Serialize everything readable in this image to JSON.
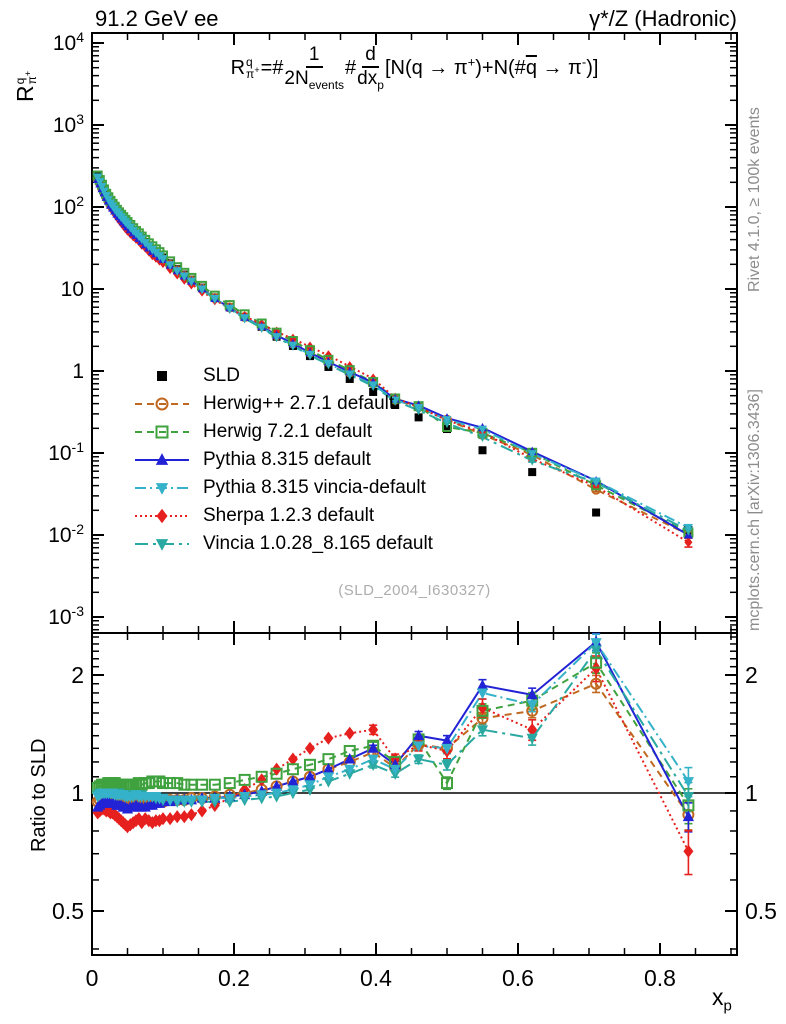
{
  "header": {
    "left": "91.2 GeV ee",
    "right": "γ*/Z (Hadronic)"
  },
  "formula": {
    "lhs_base": "R",
    "lhs_sup": "q",
    "lhs_sub_base": "π",
    "lhs_sub_sup": "+",
    "equals": "=#",
    "frac1_num": "1",
    "frac1_den": "2N",
    "frac1_den_sub": "events",
    "hash": "#",
    "frac2_num": "d",
    "frac2_den": "dx",
    "frac2_den_sub": "p",
    "rhs_1": "[N(q → π",
    "rhs_1_sup": "+",
    "rhs_2": ")+N(#",
    "rhs_qbar": "q",
    "rhs_3": " → π",
    "rhs_3_sup": "-",
    "rhs_4": ")]"
  },
  "watermark": "(SLD_2004_I630327)",
  "side_notes": {
    "right_top": "Rivet 4.1.0, ≥ 100k events",
    "right_bottom": "mcplots.cern.ch [arXiv:1306.3436]"
  },
  "axis_titles": {
    "main_base": "R",
    "main_sup": "q",
    "main_sub_base": "π",
    "main_sub_sup": "+",
    "ratio_label": "Ratio to SLD",
    "x_base": "x",
    "x_sub": "p"
  },
  "axes": {
    "x": {
      "majors": [
        {
          "v": 0,
          "t": "0"
        },
        {
          "v": 0.2,
          "t": "0.2"
        },
        {
          "v": 0.4,
          "t": "0.4"
        },
        {
          "v": 0.6,
          "t": "0.6"
        },
        {
          "v": 0.8,
          "t": "0.8"
        }
      ],
      "minor_step": 0.05,
      "max": 0.9085
    },
    "y_main_ticks": [
      {
        "v": 10000,
        "t": "10",
        "e": "4"
      },
      {
        "v": 1000,
        "t": "10",
        "e": "3"
      },
      {
        "v": 100,
        "t": "10",
        "e": "2"
      },
      {
        "v": 10,
        "t": "10",
        "e": ""
      },
      {
        "v": 1,
        "t": "1",
        "e": ""
      },
      {
        "v": 0.1,
        "t": "10",
        "e": "-1"
      },
      {
        "v": 0.01,
        "t": "10",
        "e": "-2"
      },
      {
        "v": 0.001,
        "t": "10",
        "e": "-3"
      }
    ],
    "y_ratio": {
      "majors": [
        {
          "v": 2,
          "t": "2"
        },
        {
          "v": 1,
          "t": "1"
        },
        {
          "v": 0.5,
          "t": "0.5"
        }
      ],
      "minors": [
        0.4,
        0.6,
        0.7,
        0.8,
        0.9,
        1.1,
        1.2,
        1.3,
        1.4,
        1.5,
        1.6,
        1.7,
        1.8,
        1.9,
        2.1,
        2.2,
        2.3,
        2.4,
        2.5
      ]
    }
  },
  "chart_data": {
    "type": "line",
    "log_y": true,
    "log_ratio": true,
    "grid": false,
    "legend_position": "upper-left-inside",
    "x_range": [
      0,
      0.9085
    ],
    "y_range": [
      0.00065,
      13500
    ],
    "ratio_range": [
      0.386,
      2.56
    ],
    "xlabel": "x_p",
    "ylabel": "R^q_π+",
    "ratio_ylabel": "Ratio to SLD",
    "x": [
      0.008,
      0.011,
      0.014,
      0.017,
      0.02,
      0.023,
      0.026,
      0.029,
      0.032,
      0.035,
      0.038,
      0.041,
      0.044,
      0.047,
      0.05,
      0.054,
      0.058,
      0.062,
      0.066,
      0.07,
      0.075,
      0.08,
      0.085,
      0.09,
      0.095,
      0.1,
      0.11,
      0.12,
      0.13,
      0.14,
      0.155,
      0.173,
      0.194,
      0.215,
      0.239,
      0.26,
      0.283,
      0.307,
      0.333,
      0.363,
      0.396,
      0.427,
      0.46,
      0.5,
      0.55,
      0.62,
      0.71,
      0.84
    ],
    "sld": {
      "label": "SLD",
      "color": "#000000",
      "marker": "square",
      "values": [
        235,
        205,
        178,
        156,
        138,
        124,
        112,
        103,
        95,
        88,
        82,
        76.5,
        71.5,
        67,
        63,
        57.5,
        52.5,
        48.5,
        45,
        41.5,
        37.5,
        34,
        31,
        28.5,
        26.3,
        24.2,
        20.5,
        17.4,
        15.0,
        13.0,
        10.4,
        7.9,
        6.0,
        4.55,
        3.45,
        2.62,
        2.02,
        1.52,
        1.12,
        0.8,
        0.555,
        0.385,
        0.272,
        0.196,
        0.108,
        0.0585,
        0.0188,
        0.0115
      ]
    },
    "ratio_definition": "MC value = SLD value × ratio",
    "series": [
      {
        "name": "Herwig++ 2.7.1 default",
        "color": "#c06820",
        "dash": "7 5",
        "marker": "circle-open",
        "ratio": [
          0.95,
          0.96,
          0.97,
          0.97,
          0.96,
          0.96,
          0.96,
          0.96,
          0.96,
          0.95,
          0.95,
          0.95,
          0.94,
          0.94,
          0.94,
          0.94,
          0.94,
          0.94,
          0.95,
          0.95,
          0.95,
          0.95,
          0.95,
          0.95,
          0.95,
          0.95,
          0.96,
          0.96,
          0.96,
          0.97,
          0.97,
          0.98,
          0.99,
          1.0,
          1.02,
          1.04,
          1.07,
          1.1,
          1.15,
          1.2,
          1.27,
          1.16,
          1.33,
          1.3,
          1.55,
          1.62,
          1.9,
          0.88
        ]
      },
      {
        "name": "Herwig 7.2.1 default",
        "color": "#3fa23f",
        "dash": "7 5",
        "marker": "square-open",
        "ratio": [
          1.03,
          1.04,
          1.05,
          1.05,
          1.05,
          1.06,
          1.06,
          1.06,
          1.06,
          1.05,
          1.05,
          1.05,
          1.05,
          1.04,
          1.04,
          1.05,
          1.05,
          1.05,
          1.06,
          1.05,
          1.06,
          1.06,
          1.07,
          1.07,
          1.07,
          1.06,
          1.06,
          1.06,
          1.05,
          1.05,
          1.05,
          1.05,
          1.06,
          1.08,
          1.1,
          1.12,
          1.15,
          1.18,
          1.22,
          1.28,
          1.32,
          1.2,
          1.37,
          1.06,
          1.62,
          1.72,
          2.15,
          0.93
        ]
      },
      {
        "name": "Pythia 8.315 default",
        "color": "#2323d6",
        "dash": "",
        "marker": "triangle-up",
        "ratio": [
          0.92,
          0.93,
          0.94,
          0.95,
          0.95,
          0.95,
          0.94,
          0.94,
          0.94,
          0.93,
          0.93,
          0.93,
          0.92,
          0.92,
          0.91,
          0.92,
          0.92,
          0.93,
          0.92,
          0.92,
          0.92,
          0.93,
          0.93,
          0.94,
          0.94,
          0.95,
          0.95,
          0.96,
          0.96,
          0.96,
          0.97,
          0.97,
          0.98,
          0.99,
          1.01,
          1.04,
          1.07,
          1.1,
          1.15,
          1.22,
          1.3,
          1.18,
          1.4,
          1.36,
          1.88,
          1.78,
          2.43,
          0.87
        ]
      },
      {
        "name": "Pythia 8.315 vincia-default",
        "color": "#35b2c9",
        "dash": "11 4 2 4",
        "marker": "triangle-down",
        "ratio": [
          0.98,
          0.99,
          1.0,
          1.0,
          1.0,
          1.0,
          1.0,
          1.0,
          0.99,
          0.99,
          0.99,
          0.99,
          0.99,
          0.98,
          0.98,
          0.98,
          0.98,
          0.99,
          0.98,
          0.98,
          0.98,
          0.98,
          0.98,
          0.98,
          0.97,
          0.97,
          0.96,
          0.96,
          0.96,
          0.96,
          0.96,
          0.97,
          0.97,
          0.98,
          0.99,
          1.0,
          1.02,
          1.05,
          1.1,
          1.15,
          1.22,
          1.15,
          1.32,
          1.3,
          1.8,
          1.68,
          2.42,
          1.07
        ]
      },
      {
        "name": "Sherpa 1.2.3 default",
        "color": "#e6201e",
        "dash": "2 3",
        "marker": "diamond",
        "ratio": [
          0.89,
          0.9,
          0.91,
          0.91,
          0.9,
          0.9,
          0.89,
          0.89,
          0.88,
          0.87,
          0.86,
          0.85,
          0.84,
          0.83,
          0.82,
          0.83,
          0.84,
          0.85,
          0.86,
          0.84,
          0.86,
          0.85,
          0.84,
          0.85,
          0.85,
          0.86,
          0.86,
          0.87,
          0.87,
          0.88,
          0.9,
          0.93,
          0.97,
          1.02,
          1.08,
          1.15,
          1.22,
          1.3,
          1.38,
          1.42,
          1.45,
          1.22,
          1.33,
          1.28,
          1.65,
          1.45,
          2.08,
          0.71
        ]
      },
      {
        "name": "Vincia 1.0.28_8.165 default",
        "color": "#2aa9a2",
        "dash": "13 5 3 5",
        "marker": "triangle-down",
        "ratio": [
          0.99,
          1.0,
          1.0,
          1.0,
          1.0,
          1.0,
          1.0,
          1.0,
          1.0,
          1.0,
          1.0,
          0.99,
          0.99,
          0.99,
          0.99,
          0.99,
          0.99,
          0.99,
          0.99,
          0.99,
          0.98,
          0.98,
          0.98,
          0.97,
          0.97,
          0.96,
          0.96,
          0.95,
          0.95,
          0.95,
          0.95,
          0.95,
          0.95,
          0.96,
          0.97,
          0.98,
          1.0,
          1.02,
          1.07,
          1.12,
          1.18,
          1.12,
          1.22,
          1.18,
          1.45,
          1.38,
          2.32,
          0.98
        ]
      }
    ],
    "err": {
      "start": 40,
      "frac": [
        0.018,
        0.02,
        0.025,
        0.03,
        0.035,
        0.04,
        0.05,
        0.085
      ],
      "scale": [
        1,
        1.2,
        1,
        1,
        1.5,
        1
      ]
    }
  }
}
